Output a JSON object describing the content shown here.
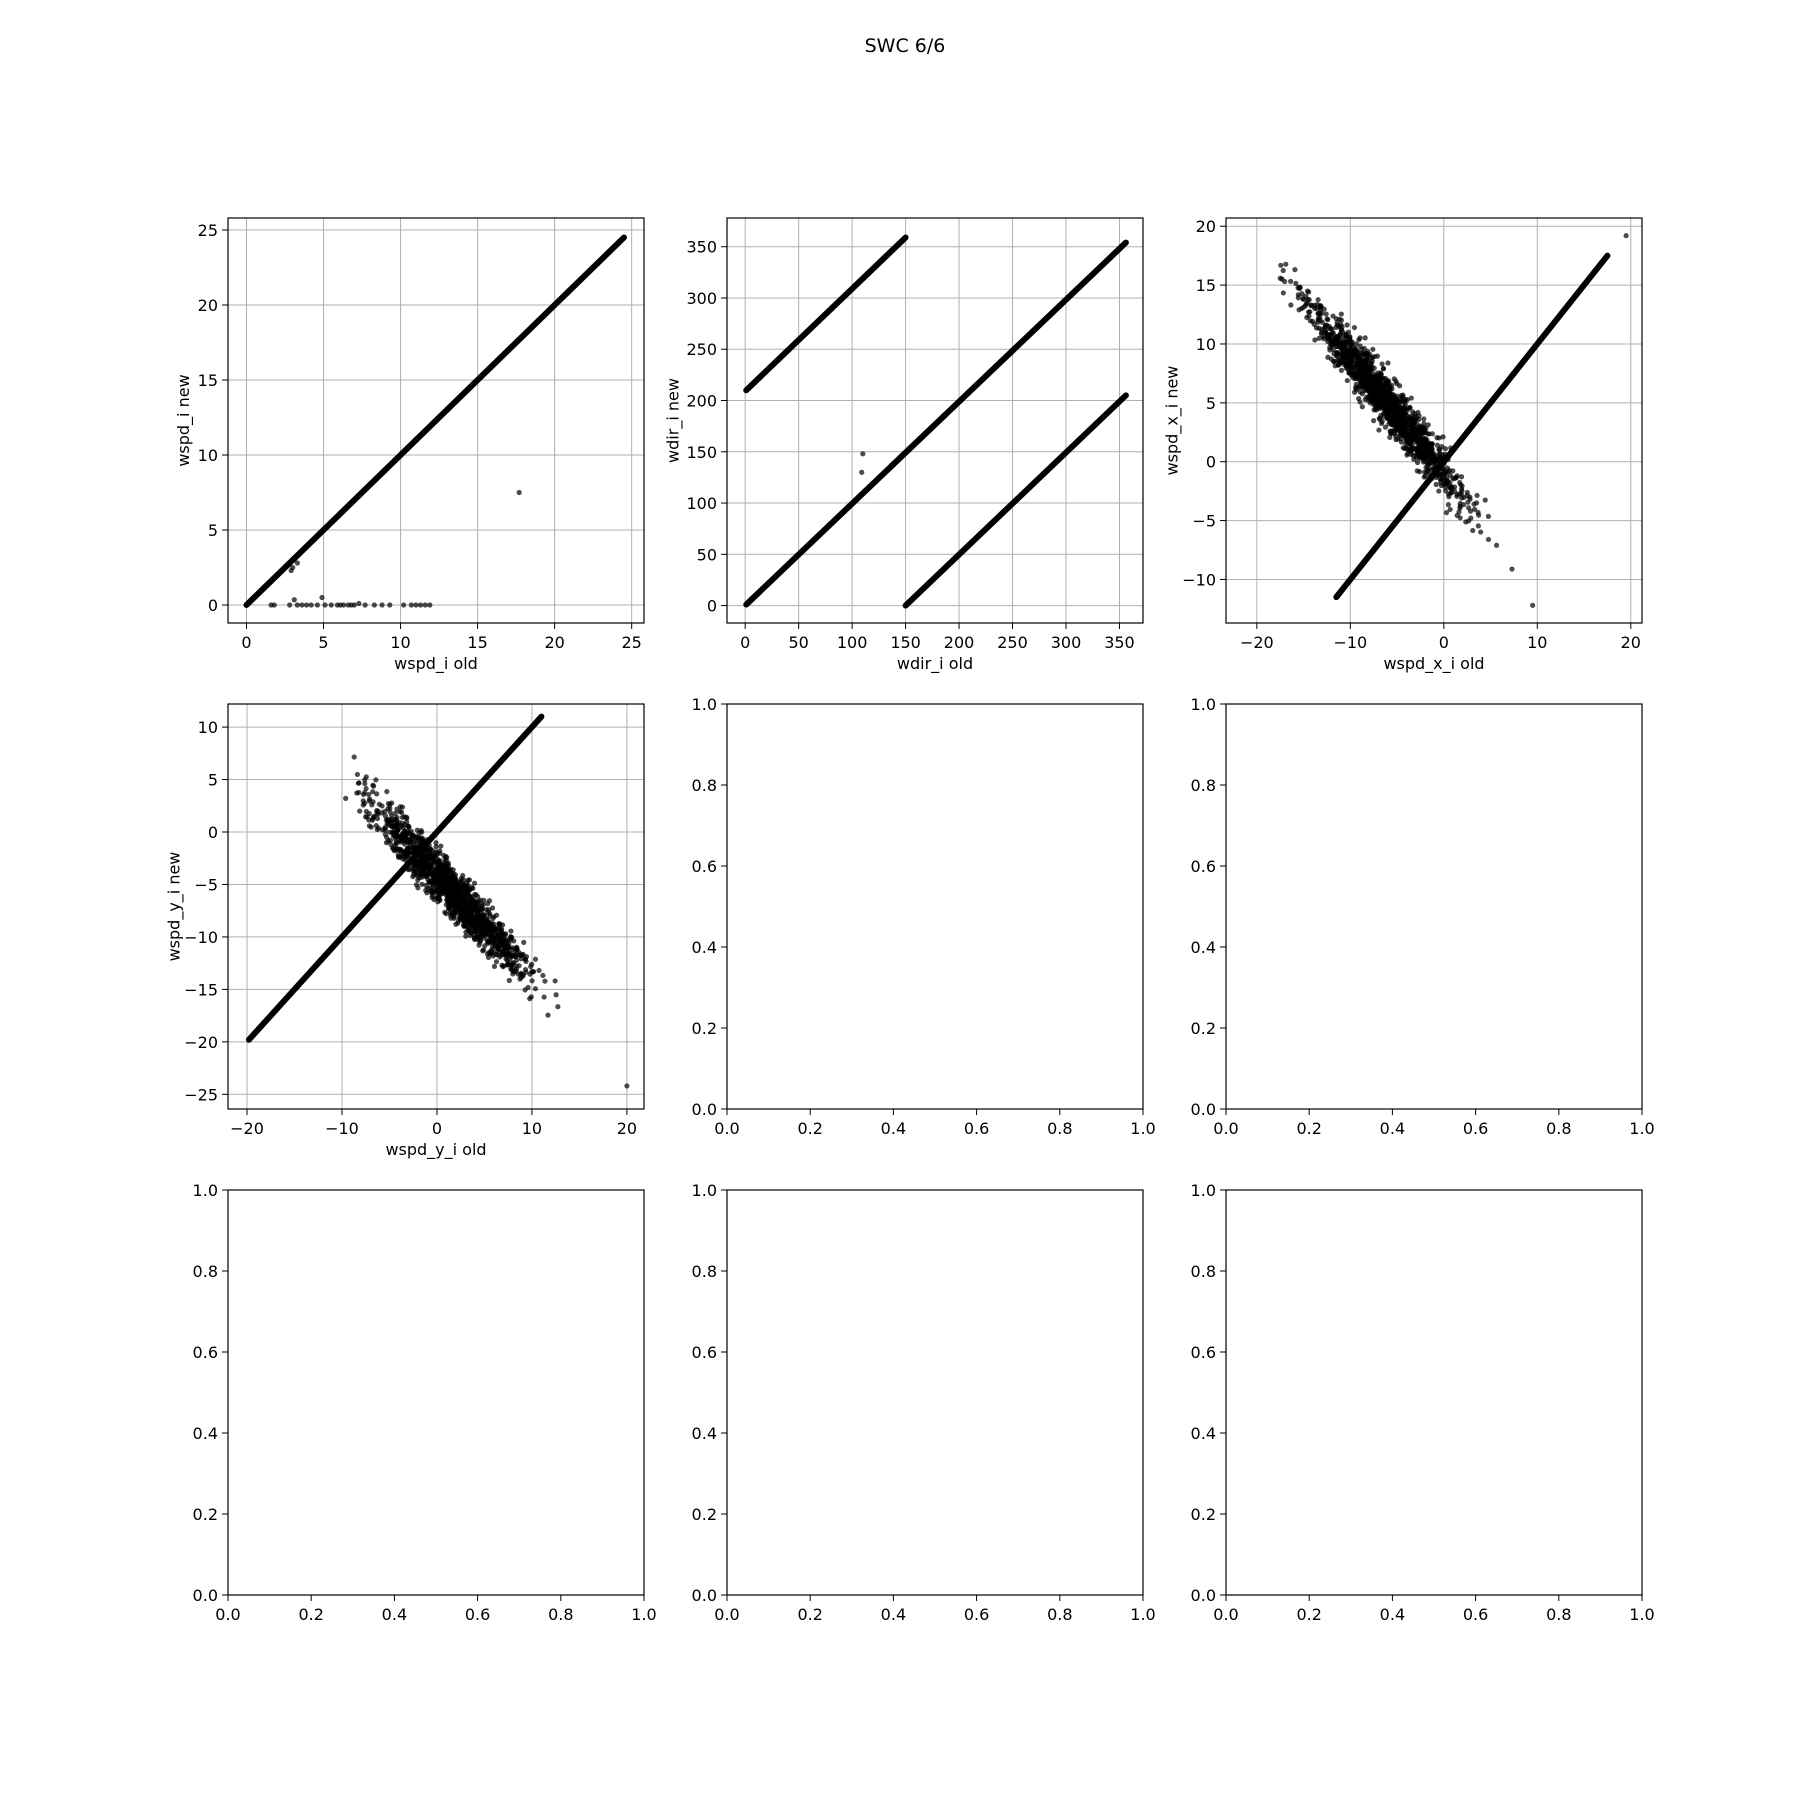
{
  "figure": {
    "title": "SWC 6/6",
    "point_color": "#000000",
    "grid_color": "#b0b0b0"
  },
  "chart_data": [
    {
      "type": "scatter",
      "xlabel": "wspd_i old",
      "ylabel": "wspd_i new",
      "xlim": [
        -1.2,
        25.8
      ],
      "ylim": [
        -1.2,
        25.8
      ],
      "xticks": [
        0,
        5,
        10,
        15,
        20,
        25
      ],
      "yticks": [
        0,
        5,
        10,
        15,
        20,
        25
      ],
      "grid": true,
      "series": [
        {
          "segments": [
            {
              "x": [
                0,
                24.5
              ],
              "y": [
                0,
                24.5
              ]
            }
          ],
          "points": [
            {
              "x": 17.7,
              "y": 7.5
            },
            {
              "x": 3.0,
              "y": 2.5
            },
            {
              "x": 3.3,
              "y": 2.8
            },
            {
              "x": 2.9,
              "y": 2.3
            },
            {
              "x": 1.6,
              "y": 0
            },
            {
              "x": 1.8,
              "y": 0
            },
            {
              "x": 2.8,
              "y": 0
            },
            {
              "x": 3.1,
              "y": 0.35
            },
            {
              "x": 3.3,
              "y": 0
            },
            {
              "x": 3.6,
              "y": 0
            },
            {
              "x": 3.9,
              "y": 0
            },
            {
              "x": 4.2,
              "y": 0
            },
            {
              "x": 4.6,
              "y": 0
            },
            {
              "x": 4.9,
              "y": 0.5
            },
            {
              "x": 5.1,
              "y": 0
            },
            {
              "x": 5.5,
              "y": 0
            },
            {
              "x": 5.9,
              "y": 0
            },
            {
              "x": 6.1,
              "y": 0
            },
            {
              "x": 6.3,
              "y": 0
            },
            {
              "x": 6.6,
              "y": 0
            },
            {
              "x": 6.8,
              "y": 0
            },
            {
              "x": 7.0,
              "y": 0
            },
            {
              "x": 7.3,
              "y": 0.1
            },
            {
              "x": 7.7,
              "y": 0
            },
            {
              "x": 8.3,
              "y": 0
            },
            {
              "x": 8.8,
              "y": 0
            },
            {
              "x": 9.3,
              "y": 0
            },
            {
              "x": 10.2,
              "y": 0
            },
            {
              "x": 10.7,
              "y": 0
            },
            {
              "x": 11.0,
              "y": 0
            },
            {
              "x": 11.3,
              "y": 0
            },
            {
              "x": 11.6,
              "y": 0
            },
            {
              "x": 11.9,
              "y": 0
            }
          ]
        }
      ]
    },
    {
      "type": "scatter",
      "xlabel": "wdir_i old",
      "ylabel": "wdir_i new",
      "xlim": [
        -17,
        372
      ],
      "ylim": [
        -17,
        378
      ],
      "xticks": [
        0,
        50,
        100,
        150,
        200,
        250,
        300,
        350
      ],
      "yticks": [
        0,
        50,
        100,
        150,
        200,
        250,
        300,
        350
      ],
      "grid": true,
      "series": [
        {
          "segments": [
            {
              "x": [
                1,
                150
              ],
              "y": [
                210,
                359
              ]
            },
            {
              "x": [
                1,
                356
              ],
              "y": [
                1,
                354
              ]
            },
            {
              "x": [
                150,
                356
              ],
              "y": [
                0,
                205
              ]
            }
          ],
          "points": [
            {
              "x": 110,
              "y": 148
            },
            {
              "x": 109,
              "y": 130
            }
          ]
        }
      ]
    },
    {
      "type": "scatter",
      "xlabel": "wspd_x_i old",
      "ylabel": "wspd_x_i new",
      "xlim": [
        -23.3,
        21.2
      ],
      "ylim": [
        -13.7,
        20.7
      ],
      "xticks": [
        -20,
        -10,
        0,
        10,
        20
      ],
      "yticks": [
        -10,
        -5,
        0,
        5,
        10,
        15,
        20
      ],
      "grid": true,
      "series": [
        {
          "segments": [
            {
              "x": [
                -11.5,
                17.5
              ],
              "y": [
                -11.5,
                17.5
              ]
            }
          ],
          "cloud": {
            "center": [
              -6,
              5
            ],
            "slope": -0.95,
            "x_range": [
              -21,
              10
            ],
            "spread": 2.0
          },
          "points": [
            {
              "x": 19.5,
              "y": 19.2
            },
            {
              "x": 9.5,
              "y": -12.2
            }
          ]
        }
      ]
    },
    {
      "type": "scatter",
      "xlabel": "wspd_y_i old",
      "ylabel": "wspd_y_i new",
      "xlim": [
        -22,
        21.8
      ],
      "ylim": [
        -26.4,
        12.2
      ],
      "xticks": [
        -20,
        -10,
        0,
        10,
        20
      ],
      "yticks": [
        -25,
        -20,
        -15,
        -10,
        -5,
        0,
        5,
        10
      ],
      "grid": true,
      "series": [
        {
          "segments": [
            {
              "x": [
                -19.8,
                11
              ],
              "y": [
                -19.8,
                11
              ]
            }
          ],
          "cloud": {
            "center": [
              1.5,
              -5.5
            ],
            "slope": -0.95,
            "x_range": [
              -10,
              20
            ],
            "spread": 2.2
          },
          "points": [
            {
              "x": 20,
              "y": -24.2
            }
          ]
        }
      ]
    },
    {
      "type": "scatter",
      "empty": true,
      "xlim": [
        0,
        1
      ],
      "ylim": [
        0,
        1
      ],
      "xticks": [
        0.0,
        0.2,
        0.4,
        0.6,
        0.8,
        1.0
      ],
      "yticks": [
        0.0,
        0.2,
        0.4,
        0.6,
        0.8,
        1.0
      ],
      "grid": false
    },
    {
      "type": "scatter",
      "empty": true,
      "xlim": [
        0,
        1
      ],
      "ylim": [
        0,
        1
      ],
      "xticks": [
        0.0,
        0.2,
        0.4,
        0.6,
        0.8,
        1.0
      ],
      "yticks": [
        0.0,
        0.2,
        0.4,
        0.6,
        0.8,
        1.0
      ],
      "grid": false
    },
    {
      "type": "scatter",
      "empty": true,
      "xlim": [
        0,
        1
      ],
      "ylim": [
        0,
        1
      ],
      "xticks": [
        0.0,
        0.2,
        0.4,
        0.6,
        0.8,
        1.0
      ],
      "yticks": [
        0.0,
        0.2,
        0.4,
        0.6,
        0.8,
        1.0
      ],
      "grid": false
    },
    {
      "type": "scatter",
      "empty": true,
      "xlim": [
        0,
        1
      ],
      "ylim": [
        0,
        1
      ],
      "xticks": [
        0.0,
        0.2,
        0.4,
        0.6,
        0.8,
        1.0
      ],
      "yticks": [
        0.0,
        0.2,
        0.4,
        0.6,
        0.8,
        1.0
      ],
      "grid": false
    },
    {
      "type": "scatter",
      "empty": true,
      "xlim": [
        0,
        1
      ],
      "ylim": [
        0,
        1
      ],
      "xticks": [
        0.0,
        0.2,
        0.4,
        0.6,
        0.8,
        1.0
      ],
      "yticks": [
        0.0,
        0.2,
        0.4,
        0.6,
        0.8,
        1.0
      ],
      "grid": false
    }
  ]
}
